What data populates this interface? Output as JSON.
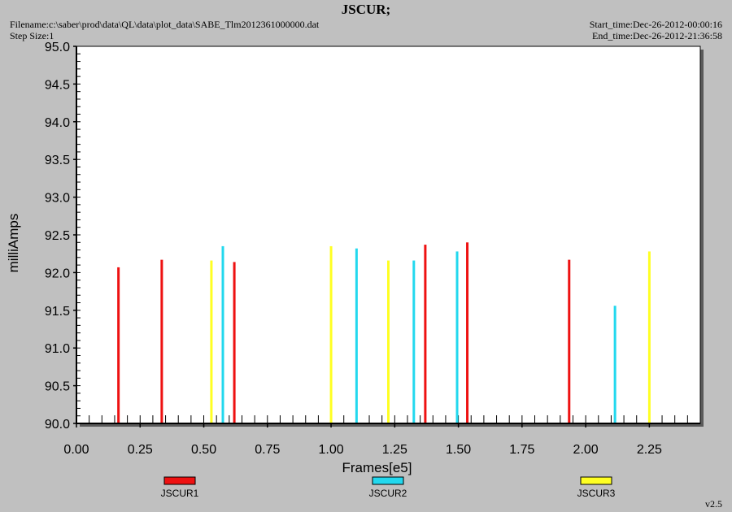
{
  "header": {
    "title": "JSCUR;",
    "filename": "Filename:c:\\saber\\prod\\data\\QL\\data\\plot_data\\SABE_Tlm2012361000000.dat",
    "step_size": "Step Size:1",
    "start_time": "Start_time:Dec-26-2012-00:00:16",
    "end_time": "End_time:Dec-26-2012-21:36:58"
  },
  "version": "v2.5",
  "colors": {
    "plot_bg": "#ffffff",
    "page_bg": "#c0c0c0",
    "shadow": "#5a5a5a",
    "JSCUR1": "#ee1111",
    "JSCUR2": "#22d8ee",
    "JSCUR3": "#ffff22"
  },
  "chart_data": {
    "type": "bar",
    "xlabel": "Frames[e5]",
    "ylabel": "milliAmps",
    "xlim": [
      0,
      2.45
    ],
    "ylim": [
      90.0,
      95.0
    ],
    "xticks": [
      "0.00",
      "0.25",
      "0.50",
      "0.75",
      "1.00",
      "1.25",
      "1.50",
      "1.75",
      "2.00",
      "2.25"
    ],
    "yticks": [
      "90.0",
      "90.5",
      "91.0",
      "91.5",
      "92.0",
      "92.5",
      "93.0",
      "93.5",
      "94.0",
      "94.5",
      "95.0"
    ],
    "legend_position": "bottom",
    "series": [
      {
        "name": "JSCUR1",
        "color": "#ee1111",
        "x": [
          0.165,
          0.335,
          0.62,
          1.37,
          1.535,
          1.935
        ],
        "y": [
          92.07,
          92.17,
          92.14,
          92.37,
          92.4,
          92.17
        ]
      },
      {
        "name": "JSCUR2",
        "color": "#22d8ee",
        "x": [
          0.575,
          1.1,
          1.325,
          1.495,
          2.115
        ],
        "y": [
          92.35,
          92.32,
          92.16,
          92.28,
          91.56
        ]
      },
      {
        "name": "JSCUR3",
        "color": "#ffff22",
        "x": [
          0.53,
          1.0,
          1.225,
          2.25
        ],
        "y": [
          92.16,
          92.35,
          92.16,
          92.28
        ]
      }
    ]
  }
}
